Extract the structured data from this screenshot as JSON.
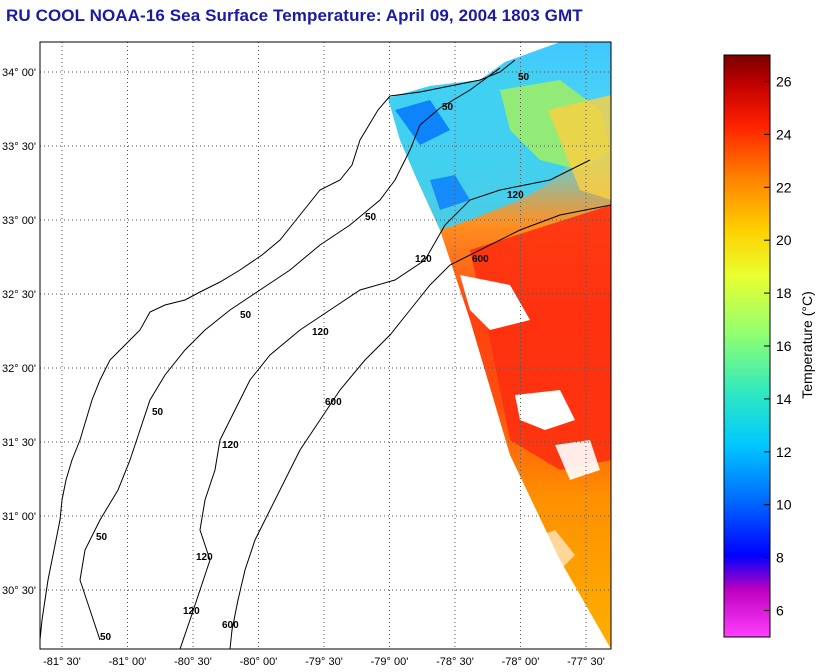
{
  "header": {
    "title": "RU COOL  NOAA-16  Sea Surface Temperature:  April 09, 2004 1803 GMT"
  },
  "map": {
    "lat_ticks": [
      "34° 00'",
      "33° 30'",
      "33° 00'",
      "32° 30'",
      "32° 00'",
      "31° 30'",
      "31° 00'",
      "30° 30'"
    ],
    "lon_ticks": [
      "-81° 30'",
      "-81° 00'",
      "-80° 30'",
      "-80° 00'",
      "-79° 30'",
      "-79° 00'",
      "-78° 30'",
      "-78° 00'",
      "-77° 30'"
    ],
    "grid": true,
    "isobath_labels": [
      "50",
      "120",
      "600"
    ],
    "colors": {
      "coastline": "#000000",
      "grid": "#555555",
      "title": "#1a1aa8"
    }
  },
  "colorbar": {
    "label": "Temperature (°C)",
    "min": 5,
    "max": 27,
    "ticks": [
      "26",
      "24",
      "22",
      "20",
      "18",
      "16",
      "14",
      "12",
      "10",
      "8",
      "6"
    ],
    "colormap": [
      "#ff40ff",
      "#c000c0",
      "#0000ff",
      "#0060ff",
      "#00c8ff",
      "#30e8d0",
      "#80ff80",
      "#e8ff30",
      "#ffd000",
      "#ff8000",
      "#ff2000",
      "#c00000",
      "#800000"
    ]
  }
}
